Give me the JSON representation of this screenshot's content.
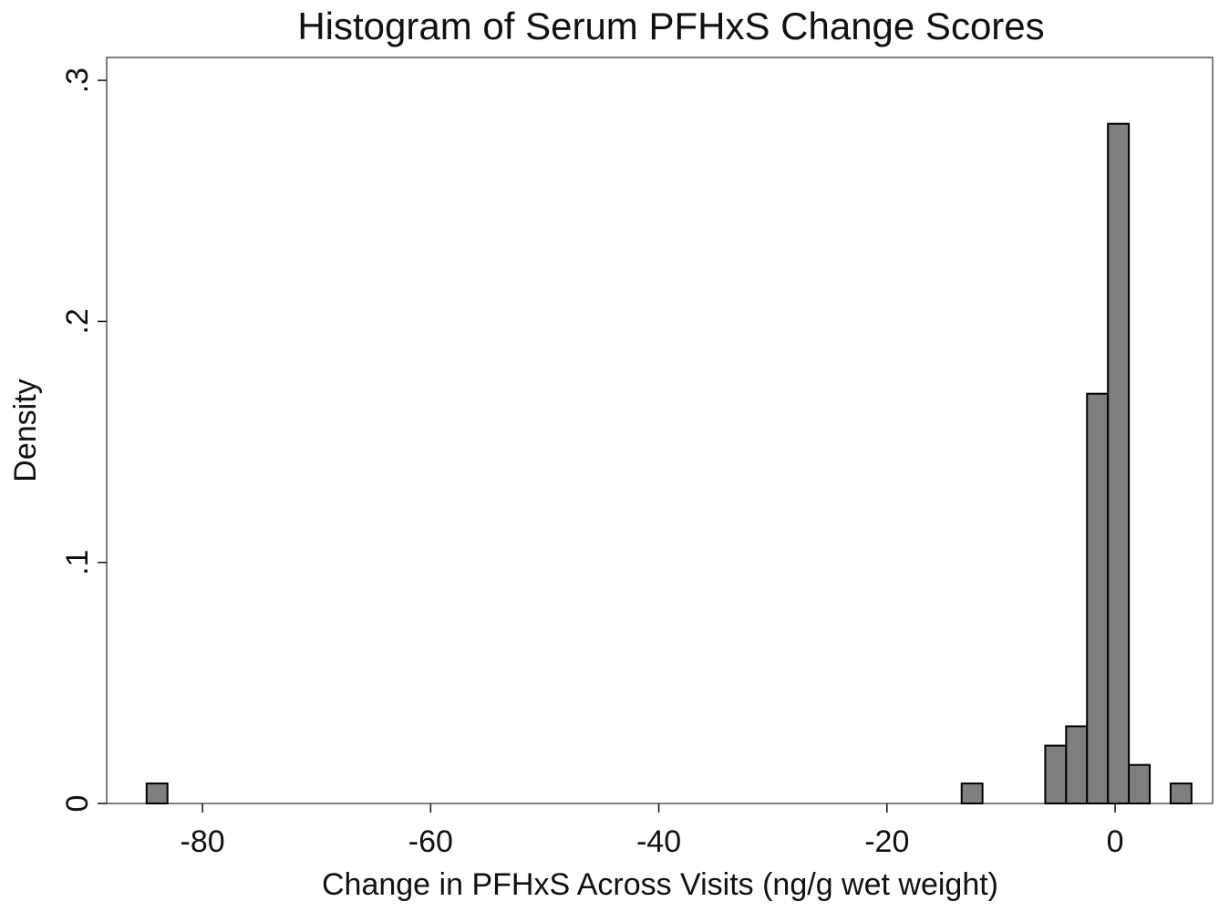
{
  "chart_data": {
    "type": "histogram",
    "title": "Histogram of Serum PFHxS Change Scores",
    "x_label": "Change in PFHxS Across Visits (ng/g wet weight)",
    "y_label": "Density",
    "bins": [
      -84.9,
      -83.068,
      -81.236,
      -79.404,
      -77.572,
      -75.74,
      -73.908,
      -72.076,
      -70.244,
      -68.412,
      -66.58,
      -64.748,
      -62.916,
      -61.084,
      -59.252,
      -57.42,
      -55.588,
      -53.756,
      -51.924,
      -50.092,
      -48.26,
      -46.428,
      -44.596,
      -42.764,
      -40.932,
      -39.1,
      -37.268,
      -35.436,
      -33.604,
      -31.772,
      -29.94,
      -28.108,
      -26.276,
      -24.444,
      -22.612,
      -20.78,
      -18.948,
      -17.116,
      -15.284,
      -13.452,
      -11.62,
      -9.788,
      -7.956,
      -6.124,
      -4.292,
      -2.46,
      -0.628,
      1.204,
      3.036,
      4.868,
      6.7
    ],
    "values": [
      0.0083,
      0,
      0,
      0,
      0,
      0,
      0,
      0,
      0,
      0,
      0,
      0,
      0,
      0,
      0,
      0,
      0,
      0,
      0,
      0,
      0,
      0,
      0,
      0,
      0,
      0,
      0,
      0,
      0,
      0,
      0,
      0,
      0,
      0,
      0,
      0,
      0,
      0,
      0,
      0.0083,
      0,
      0,
      0,
      0.024,
      0.032,
      0.17,
      0.282,
      0.016,
      0,
      0.0083
    ],
    "color": "#7f7f7f",
    "xlim": [
      -88.4,
      8.55
    ],
    "ylim": [
      0,
      0.3095
    ],
    "xticks": [
      -80,
      -60,
      -40,
      -20,
      0
    ],
    "yticks": [
      0,
      {
        "value": 0.1,
        "label": ".1"
      },
      {
        "value": 0.2,
        "label": ".2"
      },
      {
        "value": 0.3,
        "label": ".3"
      }
    ]
  }
}
